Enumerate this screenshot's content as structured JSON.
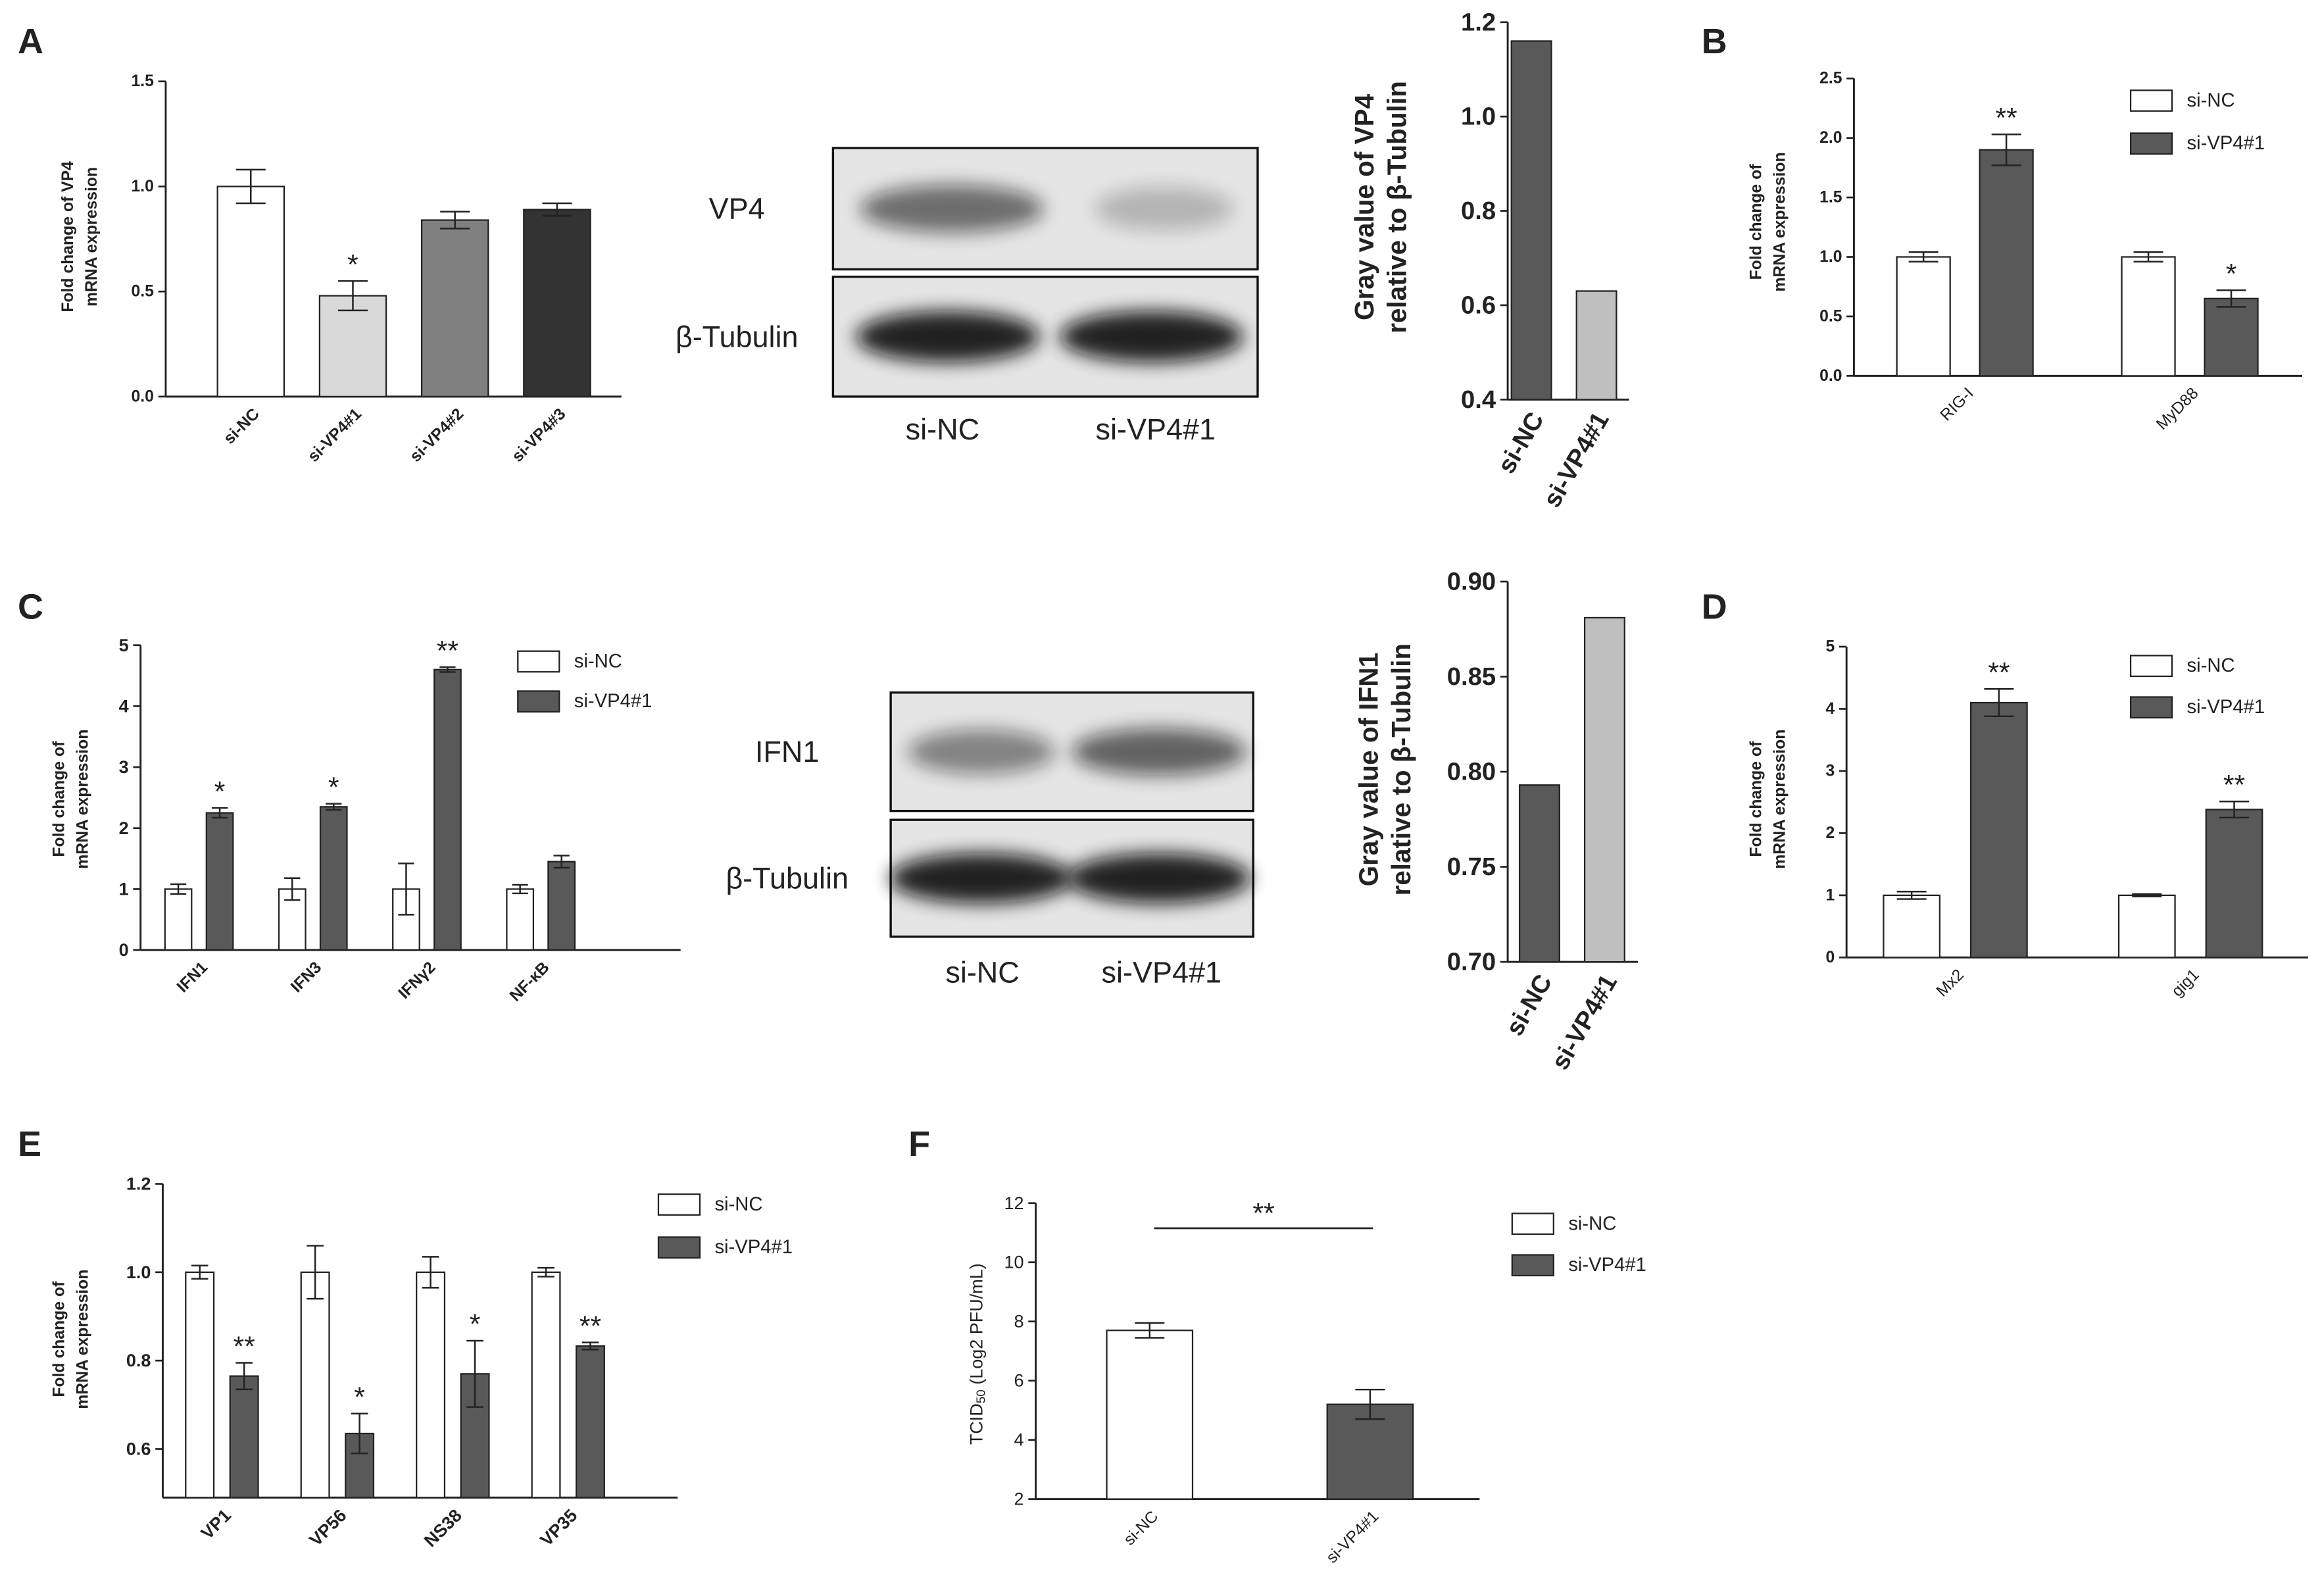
{
  "chart_data": [
    {
      "type": "bar",
      "panel": "A",
      "ylabel": [
        "Fold change of VP4",
        "mRNA expression"
      ],
      "categories": [
        "si-NC",
        "si-VP4#1",
        "si-VP4#2",
        "si-VP4#3"
      ],
      "values": [
        1.0,
        0.48,
        0.84,
        0.89
      ],
      "errors": [
        0.08,
        0.07,
        0.04,
        0.03
      ],
      "colors": [
        "#ffffff",
        "#d9d9d9",
        "#808080",
        "#333333"
      ],
      "significance": [
        null,
        "*",
        null,
        null
      ],
      "ylim": [
        0,
        1.5
      ],
      "yticks": [
        {
          "value": 0,
          "label": "0.0"
        },
        {
          "value": 0.5,
          "label": "0.5"
        },
        {
          "value": 1,
          "label": "1.0"
        },
        {
          "value": 1.5,
          "label": "1.5"
        }
      ]
    },
    {
      "type": "bar",
      "ylabel": [
        "Gray value of VP4",
        "relative to β-Tubulin"
      ],
      "categories": [
        "si-NC",
        "si-VP4#1"
      ],
      "values": [
        1.16,
        0.63
      ],
      "colors": [
        "#595959",
        "#bfbfbf"
      ],
      "ylim": [
        0.4,
        1.2
      ],
      "yticks": [
        0.4,
        0.6,
        0.8,
        {
          "value": 1,
          "label": "1.0"
        },
        1.2
      ]
    },
    {
      "type": "bar",
      "panel": "B",
      "ylabel": [
        "Fold change of",
        "mRNA expression"
      ],
      "categories": [
        "RIG-I",
        "MyD88"
      ],
      "series": [
        {
          "name": "si-NC",
          "color": "#ffffff",
          "values": [
            1.0,
            1.0
          ],
          "errors": [
            0.04,
            0.04
          ]
        },
        {
          "name": "si-VP4#1",
          "color": "#595959",
          "values": [
            1.9,
            0.65
          ],
          "errors": [
            0.13,
            0.07
          ],
          "significance": [
            "**",
            "*"
          ]
        }
      ],
      "ylim": [
        0,
        2.5
      ],
      "yticks": [
        {
          "value": 0,
          "label": "0.0"
        },
        0.5,
        {
          "value": 1,
          "label": "1.0"
        },
        1.5,
        {
          "value": 2,
          "label": "2.0"
        },
        2.5
      ]
    },
    {
      "type": "bar",
      "panel": "C",
      "ylabel": [
        "Fold change of",
        "mRNA expression"
      ],
      "categories": [
        "IFN1",
        "IFN3",
        "IFNγ2",
        "NF-κB"
      ],
      "series": [
        {
          "name": "si-NC",
          "color": "#ffffff",
          "values": [
            1,
            1,
            1,
            1
          ],
          "errors": [
            0.08,
            0.18,
            0.42,
            0.07
          ]
        },
        {
          "name": "si-VP4#1",
          "color": "#595959",
          "values": [
            2.25,
            2.35,
            4.6,
            1.45
          ],
          "errors": [
            0.08,
            0.05,
            0.04,
            0.1
          ],
          "significance": [
            "*",
            "*",
            "**",
            null
          ]
        }
      ],
      "ylim": [
        0,
        5
      ],
      "yticks": [
        0,
        1,
        2,
        3,
        4,
        5
      ]
    },
    {
      "type": "bar",
      "ylabel": [
        "Gray value of IFN1",
        "relative to β-Tubulin"
      ],
      "categories": [
        "si-NC",
        "si-VP4#1"
      ],
      "values": [
        0.793,
        0.881
      ],
      "colors": [
        "#595959",
        "#bfbfbf"
      ],
      "ylim": [
        0.7,
        0.9
      ],
      "yticks": [
        {
          "value": 0.7,
          "label": "0.70"
        },
        0.75,
        {
          "value": 0.8,
          "label": "0.80"
        },
        0.85,
        {
          "value": 0.9,
          "label": "0.90"
        }
      ]
    },
    {
      "type": "bar",
      "panel": "D",
      "ylabel": [
        "Fold change of",
        "mRNA expression"
      ],
      "categories": [
        "Mx2",
        "gig1"
      ],
      "series": [
        {
          "name": "si-NC",
          "color": "#ffffff",
          "values": [
            1.0,
            1.0
          ],
          "errors": [
            0.06,
            0.02
          ]
        },
        {
          "name": "si-VP4#1",
          "color": "#595959",
          "values": [
            4.1,
            2.38
          ],
          "errors": [
            0.22,
            0.13
          ],
          "significance": [
            "**",
            "**"
          ]
        }
      ],
      "ylim": [
        0,
        5
      ],
      "yticks": [
        0,
        1,
        2,
        3,
        4,
        5
      ]
    },
    {
      "type": "bar",
      "panel": "E",
      "ylabel": [
        "Fold change of",
        "mRNA expression"
      ],
      "categories": [
        "VP1",
        "VP56",
        "NS38",
        "VP35"
      ],
      "series": [
        {
          "name": "si-NC",
          "color": "#ffffff",
          "values": [
            1,
            1,
            1,
            1
          ],
          "errors": [
            0.015,
            0.06,
            0.035,
            0.01
          ]
        },
        {
          "name": "si-VP4#1",
          "color": "#595959",
          "values": [
            0.765,
            0.635,
            0.77,
            0.833
          ],
          "errors": [
            0.03,
            0.045,
            0.075,
            0.008
          ],
          "significance": [
            "**",
            "*",
            "*",
            "**"
          ]
        }
      ],
      "ylim": [
        0.49,
        1.2
      ],
      "yticks": [
        0.6,
        0.8,
        {
          "value": 1,
          "label": "1.0"
        },
        1.2
      ]
    },
    {
      "type": "bar",
      "panel": "F",
      "ylabel": {
        "text": "TCID",
        "sub": "50",
        "rest": " (Log2 PFU/mL)"
      },
      "categories": [
        "si-NC",
        "si-VP4#1"
      ],
      "values": [
        7.7,
        5.2
      ],
      "errors": [
        0.25,
        0.5
      ],
      "colors": [
        "#ffffff",
        "#595959"
      ],
      "legend": true,
      "bracket": "**",
      "ylim": [
        2,
        12
      ],
      "yticks": [
        2,
        4,
        6,
        8,
        10,
        12
      ]
    }
  ],
  "blots": [
    {
      "bands": [
        "VP4",
        "β-Tubulin"
      ],
      "lanes": [
        "si-NC",
        "si-VP4#1"
      ]
    },
    {
      "bands": [
        "IFN1",
        "β-Tubulin"
      ],
      "lanes": [
        "si-NC",
        "si-VP4#1"
      ]
    }
  ]
}
